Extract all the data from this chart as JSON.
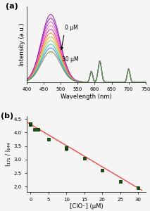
{
  "panel_a_label": "(a)",
  "panel_b_label": "(b)",
  "wavelength_min": 400,
  "wavelength_max": 750,
  "xlabel_a": "Wavelength (nm)",
  "ylabel_a": "Intensity (a.u.)",
  "annotation_start": "0 μM",
  "annotation_end": "30 μM",
  "num_spectra": 11,
  "colors_a": [
    "#8B008B",
    "#9400D3",
    "#CC44CC",
    "#FF69B4",
    "#FF1493",
    "#FF8C00",
    "#DAA520",
    "#9ACD32",
    "#00CED1",
    "#4169E1",
    "#6B8E23"
  ],
  "scatter_x": [
    0,
    0,
    1,
    2,
    5,
    10,
    10,
    15,
    20,
    25,
    30
  ],
  "scatter_y": [
    4.3,
    4.33,
    4.1,
    4.12,
    3.75,
    3.4,
    3.45,
    3.05,
    2.6,
    2.18,
    1.95
  ],
  "scatter_yerr": [
    0.05,
    0.05,
    0.05,
    0.05,
    0.05,
    0.06,
    0.06,
    0.05,
    0.05,
    0.05,
    0.05
  ],
  "fit_slope": -0.0786,
  "fit_intercept": 4.3,
  "xlabel_b": "[ClO⁻] (μM)",
  "ylabel_b": "I₁₇₁ / I₆₄₄",
  "ylim_b": [
    1.8,
    4.6
  ],
  "xlim_b": [
    -1,
    32
  ],
  "yticks_b": [
    2.0,
    2.5,
    3.0,
    3.5,
    4.0,
    4.5
  ],
  "xticks_b": [
    0,
    5,
    10,
    15,
    20,
    25,
    30
  ],
  "scatter_color": "#006400",
  "fit_color": "#FF4444",
  "background_color": "#f5f5f5"
}
